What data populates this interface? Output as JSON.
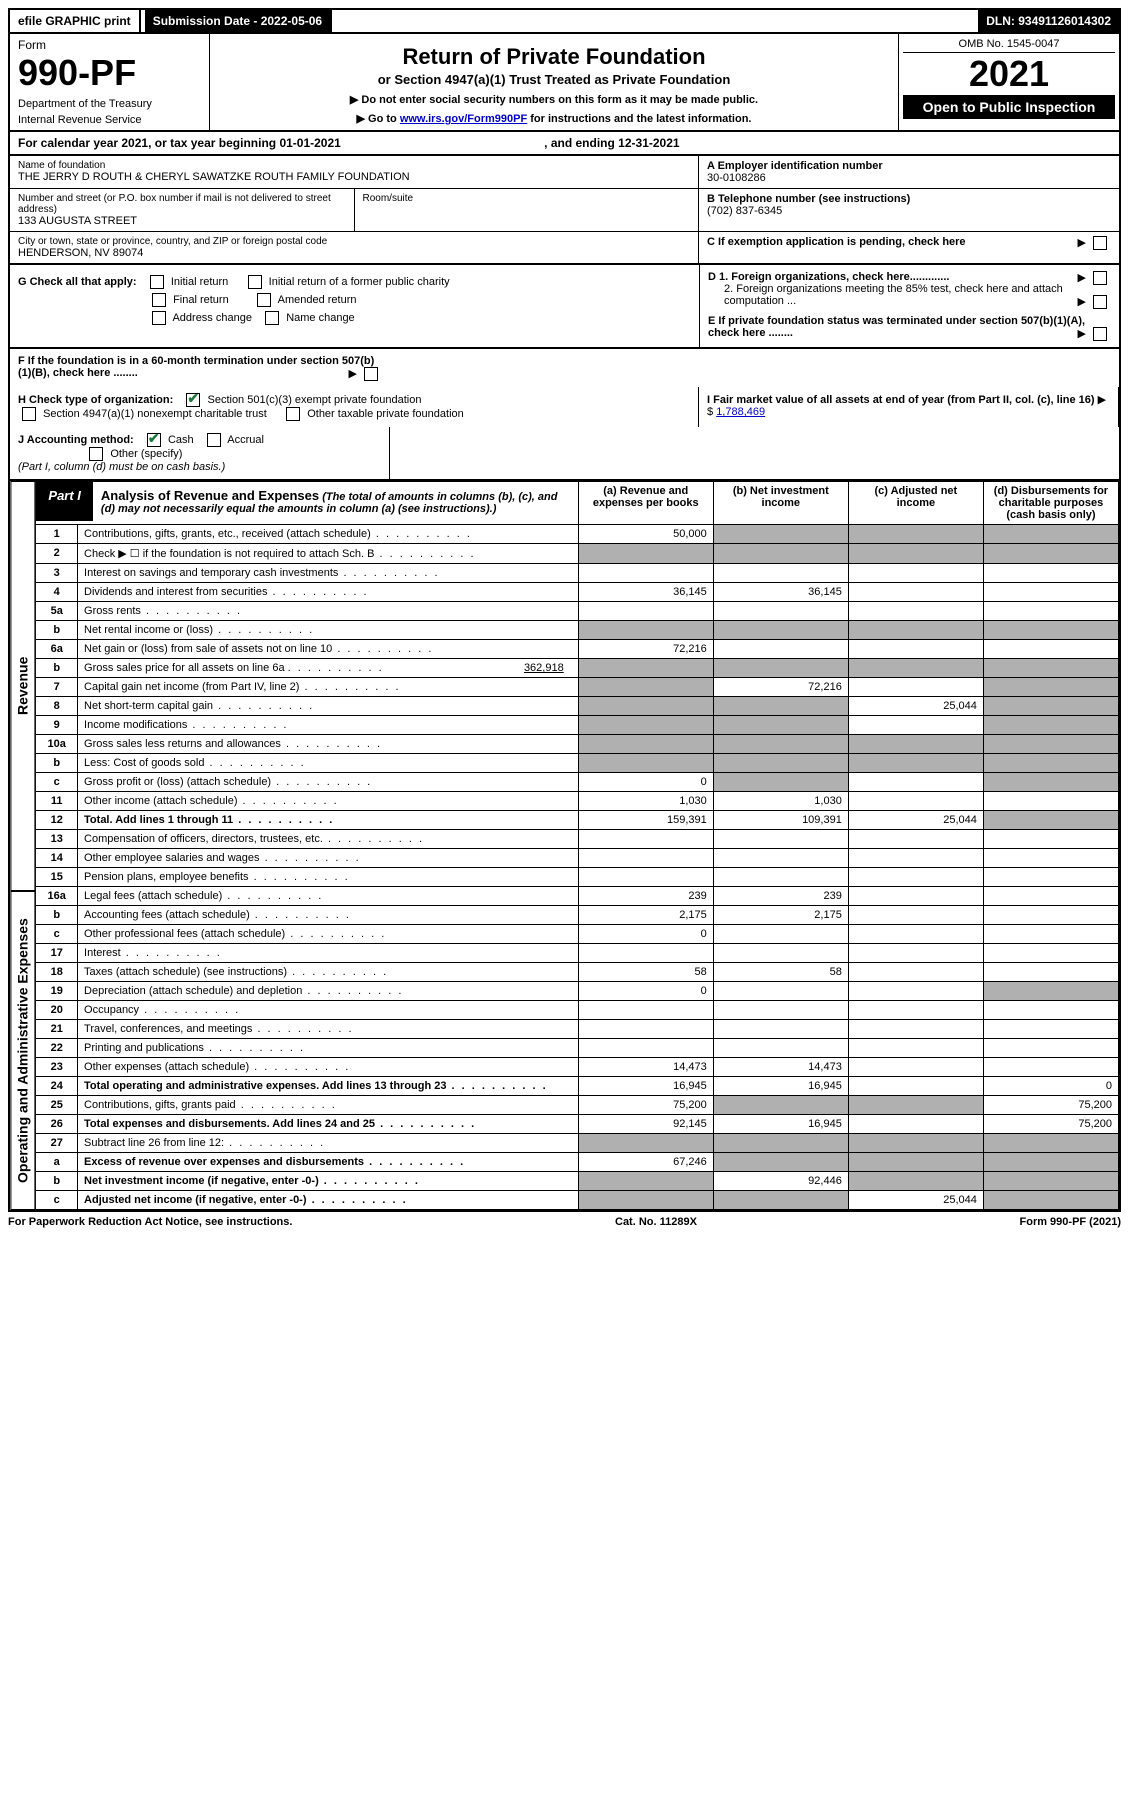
{
  "topbar": {
    "efile": "efile GRAPHIC print",
    "submission_label": "Submission Date - 2022-05-06",
    "dln": "DLN: 93491126014302"
  },
  "header": {
    "form_word": "Form",
    "form_number": "990-PF",
    "dept": "Department of the Treasury",
    "irs": "Internal Revenue Service",
    "title": "Return of Private Foundation",
    "subtitle": "or Section 4947(a)(1) Trust Treated as Private Foundation",
    "instr1": "▶ Do not enter social security numbers on this form as it may be made public.",
    "instr2_prefix": "▶ Go to ",
    "instr2_link": "www.irs.gov/Form990PF",
    "instr2_suffix": " for instructions and the latest information.",
    "omb": "OMB No. 1545-0047",
    "year": "2021",
    "open_public": "Open to Public Inspection"
  },
  "calendar_line": "For calendar year 2021, or tax year beginning 01-01-2021",
  "calendar_ending": ", and ending 12-31-2021",
  "info": {
    "name_label": "Name of foundation",
    "name": "THE JERRY D ROUTH & CHERYL SAWATZKE ROUTH FAMILY FOUNDATION",
    "addr_label": "Number and street (or P.O. box number if mail is not delivered to street address)",
    "addr": "133 AUGUSTA STREET",
    "room_label": "Room/suite",
    "city_label": "City or town, state or province, country, and ZIP or foreign postal code",
    "city": "HENDERSON, NV  89074",
    "ein_label": "A Employer identification number",
    "ein": "30-0108286",
    "tel_label": "B Telephone number (see instructions)",
    "tel": "(702) 837-6345",
    "c_label": "C If exemption application is pending, check here"
  },
  "g": {
    "label": "G Check all that apply:",
    "initial": "Initial return",
    "final": "Final return",
    "address": "Address change",
    "initial_former": "Initial return of a former public charity",
    "amended": "Amended return",
    "name_change": "Name change"
  },
  "d": {
    "d1": "D 1. Foreign organizations, check here.............",
    "d2": "2. Foreign organizations meeting the 85% test, check here and attach computation ...",
    "e": "E  If private foundation status was terminated under section 507(b)(1)(A), check here ........",
    "f": "F  If the foundation is in a 60-month termination under section 507(b)(1)(B), check here ........"
  },
  "h": {
    "label": "H Check type of organization:",
    "opt1": "Section 501(c)(3) exempt private foundation",
    "opt2": "Section 4947(a)(1) nonexempt charitable trust",
    "opt3": "Other taxable private foundation"
  },
  "i": {
    "label": "I Fair market value of all assets at end of year (from Part II, col. (c), line 16)",
    "value": "1,788,469"
  },
  "j": {
    "label": "J Accounting method:",
    "cash": "Cash",
    "accrual": "Accrual",
    "other": "Other (specify)",
    "note": "(Part I, column (d) must be on cash basis.)"
  },
  "part1": {
    "label": "Part I",
    "title": "Analysis of Revenue and Expenses",
    "note": "(The total of amounts in columns (b), (c), and (d) may not necessarily equal the amounts in column (a) (see instructions).)",
    "col_a": "(a)   Revenue and expenses per books",
    "col_b": "(b)   Net investment income",
    "col_c": "(c)   Adjusted net income",
    "col_d": "(d)   Disbursements for charitable purposes (cash basis only)"
  },
  "vert": {
    "revenue": "Revenue",
    "expenses": "Operating and Administrative Expenses"
  },
  "lines": {
    "1": {
      "n": "1",
      "d": "Contributions, gifts, grants, etc., received (attach schedule)",
      "a": "50,000"
    },
    "2": {
      "n": "2",
      "d": "Check ▶ ☐ if the foundation is not required to attach Sch. B"
    },
    "3": {
      "n": "3",
      "d": "Interest on savings and temporary cash investments"
    },
    "4": {
      "n": "4",
      "d": "Dividends and interest from securities",
      "a": "36,145",
      "b": "36,145"
    },
    "5a": {
      "n": "5a",
      "d": "Gross rents"
    },
    "5b": {
      "n": "b",
      "d": "Net rental income or (loss)"
    },
    "6a": {
      "n": "6a",
      "d": "Net gain or (loss) from sale of assets not on line 10",
      "a": "72,216"
    },
    "6b": {
      "n": "b",
      "d": "Gross sales price for all assets on line 6a",
      "inline": "362,918"
    },
    "7": {
      "n": "7",
      "d": "Capital gain net income (from Part IV, line 2)",
      "b": "72,216"
    },
    "8": {
      "n": "8",
      "d": "Net short-term capital gain",
      "c": "25,044"
    },
    "9": {
      "n": "9",
      "d": "Income modifications"
    },
    "10a": {
      "n": "10a",
      "d": "Gross sales less returns and allowances"
    },
    "10b": {
      "n": "b",
      "d": "Less: Cost of goods sold"
    },
    "10c": {
      "n": "c",
      "d": "Gross profit or (loss) (attach schedule)",
      "a": "0"
    },
    "11": {
      "n": "11",
      "d": "Other income (attach schedule)",
      "a": "1,030",
      "b": "1,030"
    },
    "12": {
      "n": "12",
      "d": "Total. Add lines 1 through 11",
      "a": "159,391",
      "b": "109,391",
      "c": "25,044"
    },
    "13": {
      "n": "13",
      "d": "Compensation of officers, directors, trustees, etc."
    },
    "14": {
      "n": "14",
      "d": "Other employee salaries and wages"
    },
    "15": {
      "n": "15",
      "d": "Pension plans, employee benefits"
    },
    "16a": {
      "n": "16a",
      "d": "Legal fees (attach schedule)",
      "a": "239",
      "b": "239"
    },
    "16b": {
      "n": "b",
      "d": "Accounting fees (attach schedule)",
      "a": "2,175",
      "b": "2,175"
    },
    "16c": {
      "n": "c",
      "d": "Other professional fees (attach schedule)",
      "a": "0"
    },
    "17": {
      "n": "17",
      "d": "Interest"
    },
    "18": {
      "n": "18",
      "d": "Taxes (attach schedule) (see instructions)",
      "a": "58",
      "b": "58"
    },
    "19": {
      "n": "19",
      "d": "Depreciation (attach schedule) and depletion",
      "a": "0"
    },
    "20": {
      "n": "20",
      "d": "Occupancy"
    },
    "21": {
      "n": "21",
      "d": "Travel, conferences, and meetings"
    },
    "22": {
      "n": "22",
      "d": "Printing and publications"
    },
    "23": {
      "n": "23",
      "d": "Other expenses (attach schedule)",
      "a": "14,473",
      "b": "14,473"
    },
    "24": {
      "n": "24",
      "d": "Total operating and administrative expenses. Add lines 13 through 23",
      "a": "16,945",
      "b": "16,945",
      "dd": "0"
    },
    "25": {
      "n": "25",
      "d": "Contributions, gifts, grants paid",
      "a": "75,200",
      "dd": "75,200"
    },
    "26": {
      "n": "26",
      "d": "Total expenses and disbursements. Add lines 24 and 25",
      "a": "92,145",
      "b": "16,945",
      "dd": "75,200"
    },
    "27": {
      "n": "27",
      "d": "Subtract line 26 from line 12:"
    },
    "27a": {
      "n": "a",
      "d": "Excess of revenue over expenses and disbursements",
      "a": "67,246"
    },
    "27b": {
      "n": "b",
      "d": "Net investment income (if negative, enter -0-)",
      "b": "92,446"
    },
    "27c": {
      "n": "c",
      "d": "Adjusted net income (if negative, enter -0-)",
      "c": "25,044"
    }
  },
  "footer": {
    "left": "For Paperwork Reduction Act Notice, see instructions.",
    "cat": "Cat. No. 11289X",
    "right": "Form 990-PF (2021)"
  },
  "colors": {
    "grey": "#b0b0b0",
    "link": "#0000cc",
    "check": "#1b7a3a"
  }
}
